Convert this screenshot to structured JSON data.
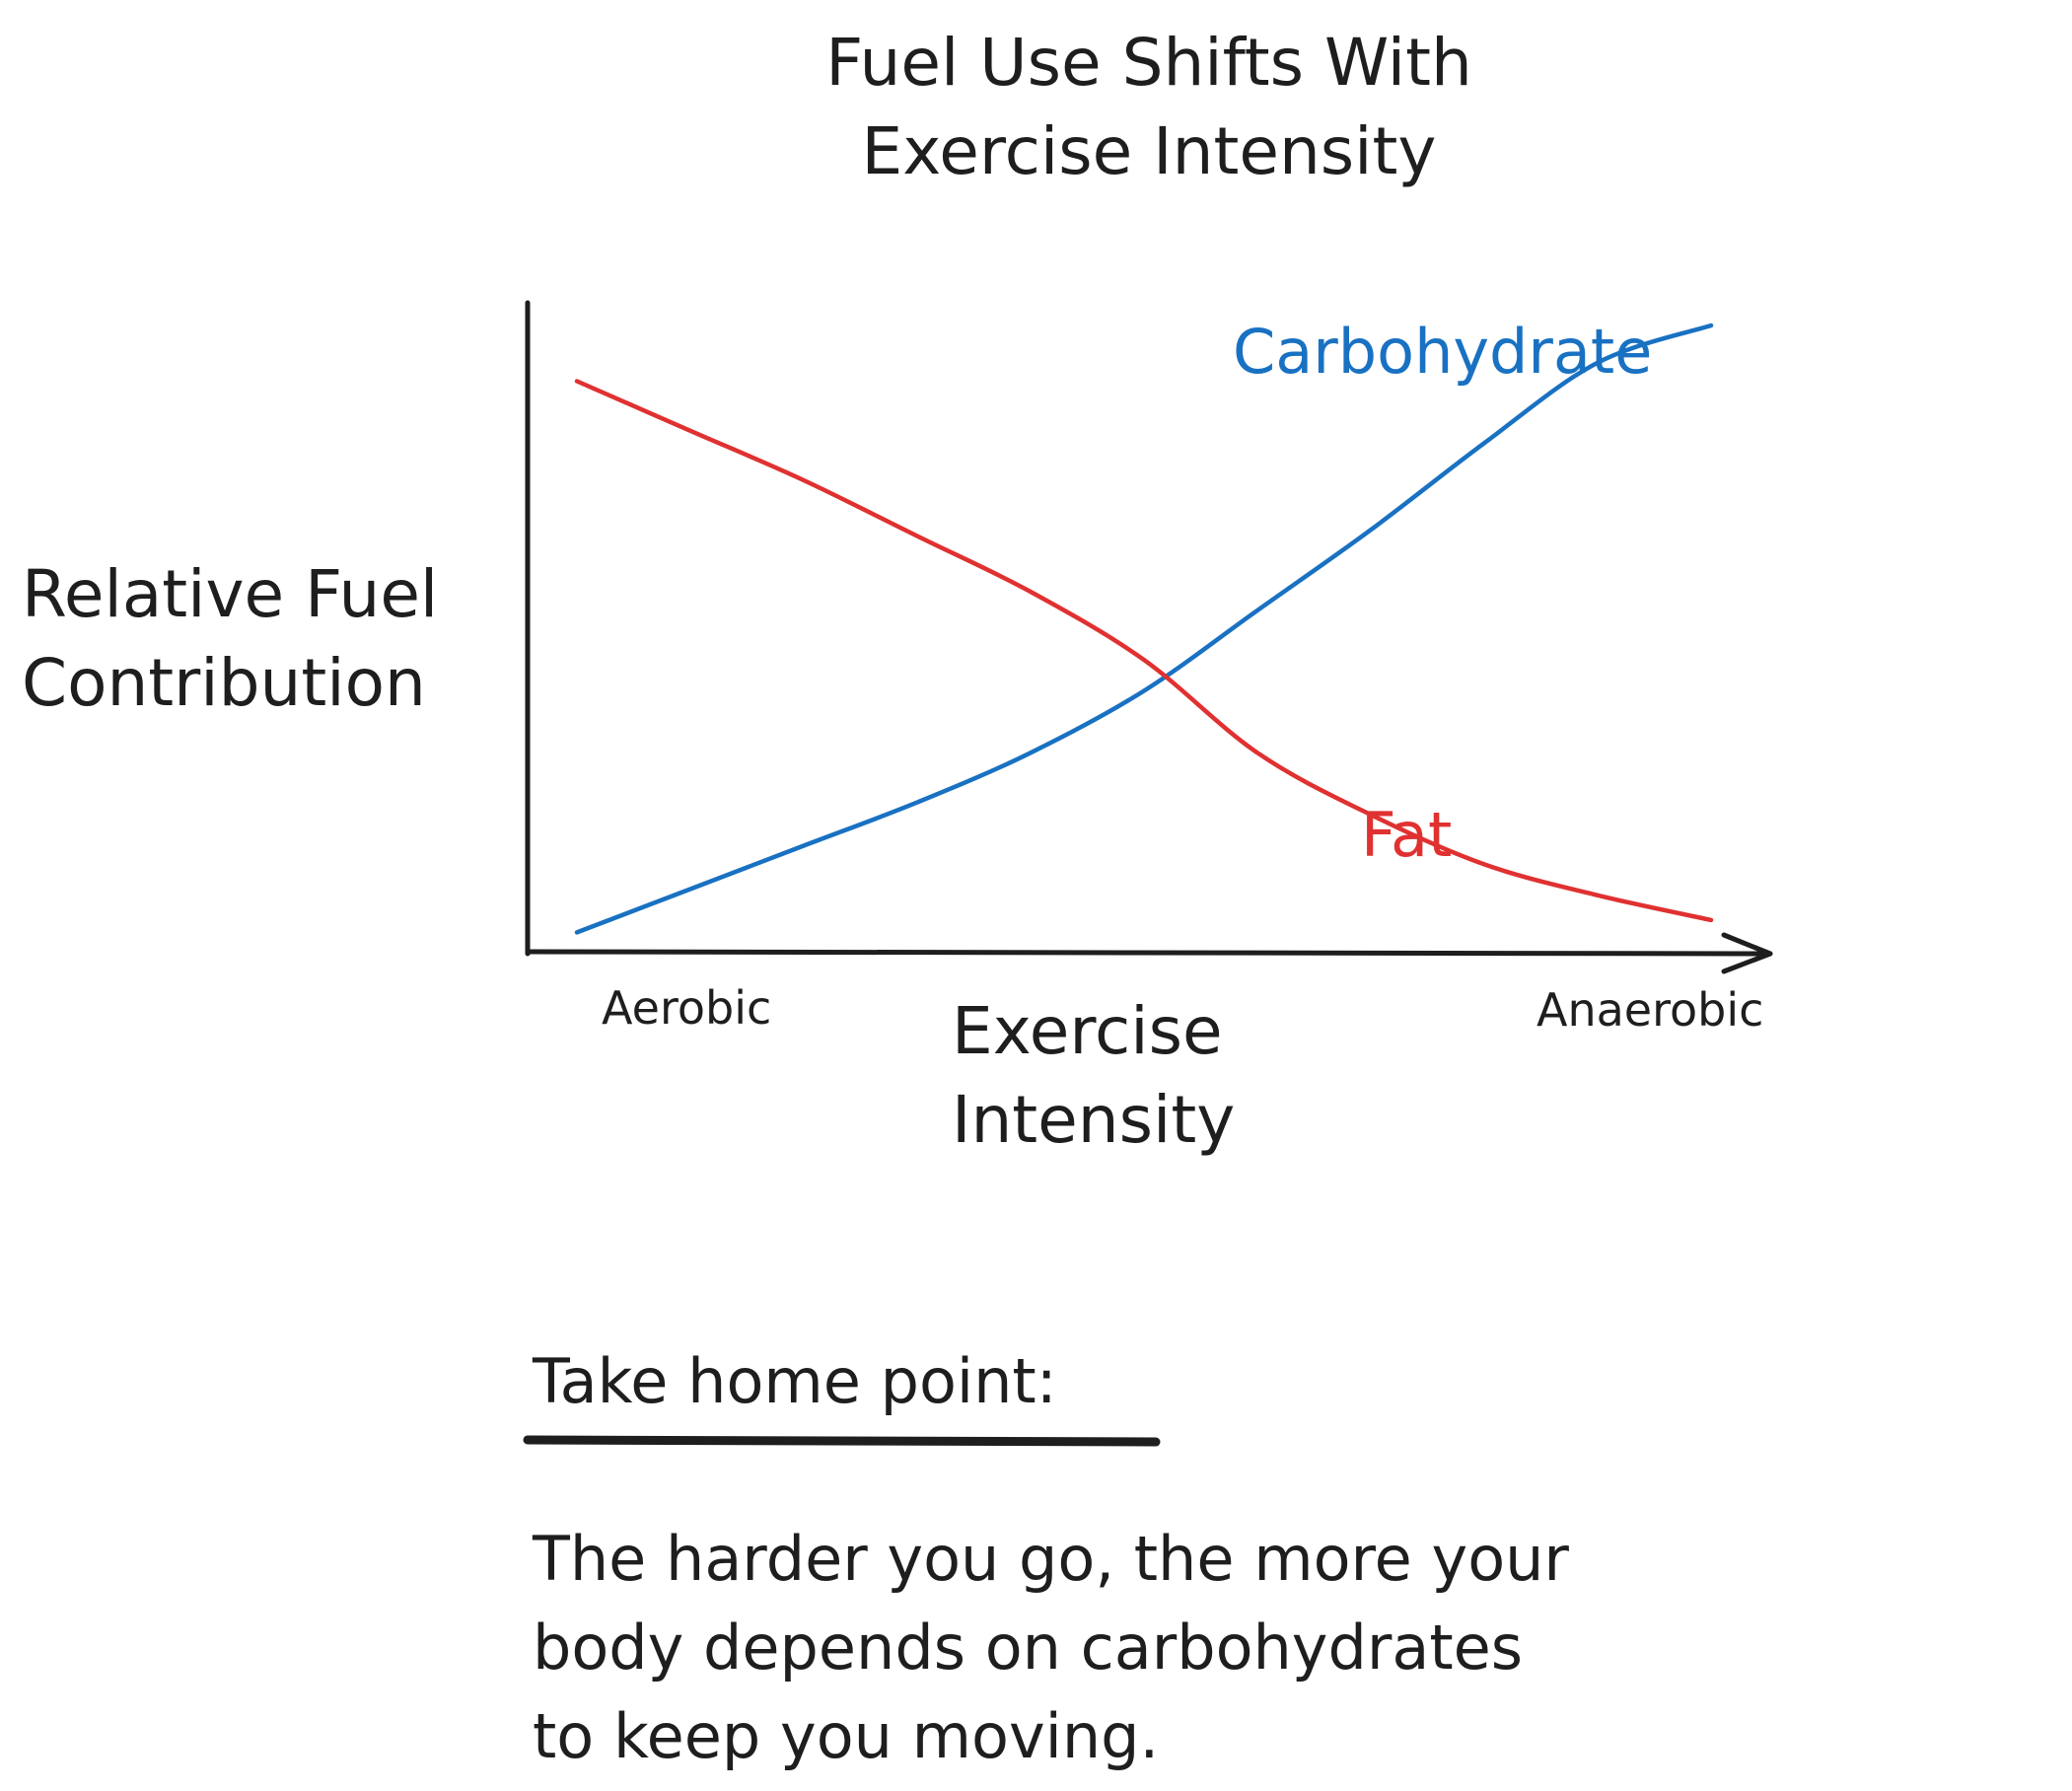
{
  "chart_data": {
    "type": "line",
    "title": [
      "Fuel Use Shifts With",
      "Exercise Intensity"
    ],
    "xlabel": [
      "Exercise",
      "Intensity"
    ],
    "ylabel": [
      "Relative Fuel",
      "Contribution"
    ],
    "x_tick_labels": {
      "start": "Aerobic",
      "end": "Anaerobic"
    },
    "x": [
      0,
      10,
      20,
      30,
      40,
      50,
      60,
      70,
      80,
      90,
      100
    ],
    "xlim": [
      0,
      100
    ],
    "ylim": [
      0,
      100
    ],
    "grid": false,
    "legend": "inline labels",
    "series": [
      {
        "name": "Carbohydrate",
        "color": "#1971c2",
        "values": [
          2,
          9,
          16,
          23,
          31,
          41,
          54,
          67,
          81,
          94,
          100
        ]
      },
      {
        "name": "Fat",
        "color": "#e03131",
        "values": [
          91,
          83,
          75,
          66,
          57,
          46,
          31,
          21,
          13,
          8,
          4
        ]
      }
    ]
  },
  "takehome": {
    "heading": "Take home point:",
    "body": [
      "The harder you go, the more your",
      "body depends on carbohydrates",
      "to keep you moving."
    ]
  }
}
